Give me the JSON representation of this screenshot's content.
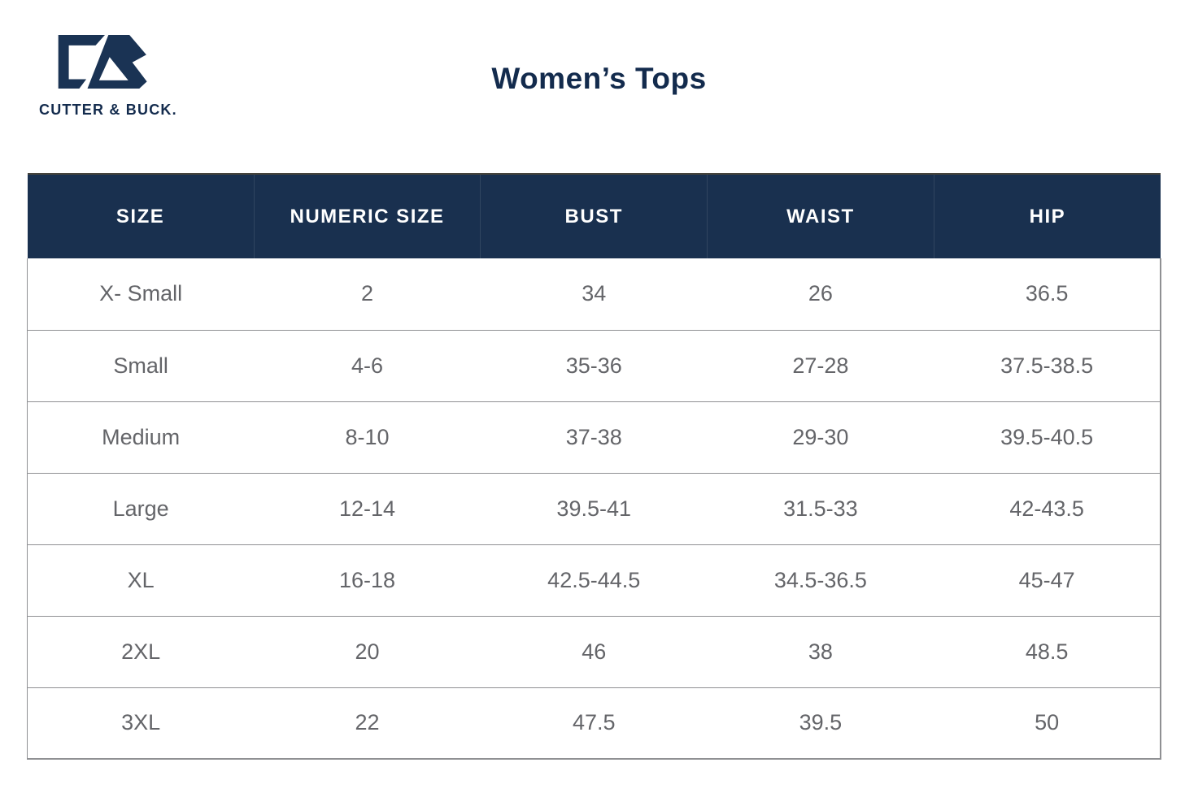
{
  "brand": {
    "name": "Cutter & Buck",
    "logo_text": "CUTTER & BUCK.",
    "logo_icon": "cb-monogram-icon"
  },
  "title": "Women’s Tops",
  "table": {
    "headers": [
      "SIZE",
      "NUMERIC SIZE",
      "BUST",
      "WAIST",
      "HIP"
    ],
    "rows": [
      [
        "X- Small",
        "2",
        "34",
        "26",
        "36.5"
      ],
      [
        "Small",
        "4-6",
        "35-36",
        "27-28",
        "37.5-38.5"
      ],
      [
        "Medium",
        "8-10",
        "37-38",
        "29-30",
        "39.5-40.5"
      ],
      [
        "Large",
        "12-14",
        "39.5-41",
        "31.5-33",
        "42-43.5"
      ],
      [
        "XL",
        "16-18",
        "42.5-44.5",
        "34.5-36.5",
        "45-47"
      ],
      [
        "2XL",
        "20",
        "46",
        "38",
        "48.5"
      ],
      [
        "3XL",
        "22",
        "47.5",
        "39.5",
        "50"
      ]
    ]
  },
  "chart_data": {
    "type": "table",
    "title": "Women’s Tops",
    "columns": [
      "SIZE",
      "NUMERIC SIZE",
      "BUST",
      "WAIST",
      "HIP"
    ],
    "rows": [
      [
        "X- Small",
        "2",
        "34",
        "26",
        "36.5"
      ],
      [
        "Small",
        "4-6",
        "35-36",
        "27-28",
        "37.5-38.5"
      ],
      [
        "Medium",
        "8-10",
        "37-38",
        "29-30",
        "39.5-40.5"
      ],
      [
        "Large",
        "12-14",
        "39.5-41",
        "31.5-33",
        "42-43.5"
      ],
      [
        "XL",
        "16-18",
        "42.5-44.5",
        "34.5-36.5",
        "45-47"
      ],
      [
        "2XL",
        "20",
        "46",
        "38",
        "48.5"
      ],
      [
        "3XL",
        "22",
        "47.5",
        "39.5",
        "50"
      ]
    ]
  },
  "colors": {
    "header_background": "#19304f",
    "title_text": "#132b4d",
    "row_text": "#646569",
    "grid_line": "#8f9093",
    "header_text": "#ffffff"
  }
}
